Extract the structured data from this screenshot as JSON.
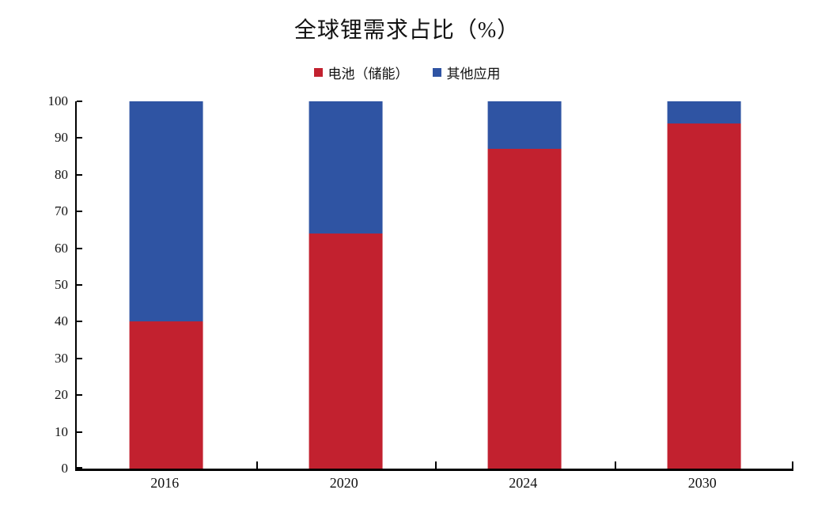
{
  "chart_data": {
    "type": "bar",
    "stacked": true,
    "title": "全球锂需求占比（%）",
    "categories": [
      "2016",
      "2020",
      "2024",
      "2030"
    ],
    "series": [
      {
        "name": "电池（储能）",
        "color": "#c2212f",
        "values": [
          40,
          64,
          87,
          94
        ]
      },
      {
        "name": "其他应用",
        "color": "#2f54a3",
        "values": [
          60,
          36,
          13,
          6
        ]
      }
    ],
    "ylim": [
      0,
      100
    ],
    "ytick_step": 10,
    "ytick_labels": [
      "0",
      "10",
      "20",
      "30",
      "40",
      "50",
      "60",
      "70",
      "80",
      "90",
      "100"
    ],
    "grid": false,
    "legend_position": "top",
    "axis_color": "#000000",
    "background": "#ffffff"
  }
}
